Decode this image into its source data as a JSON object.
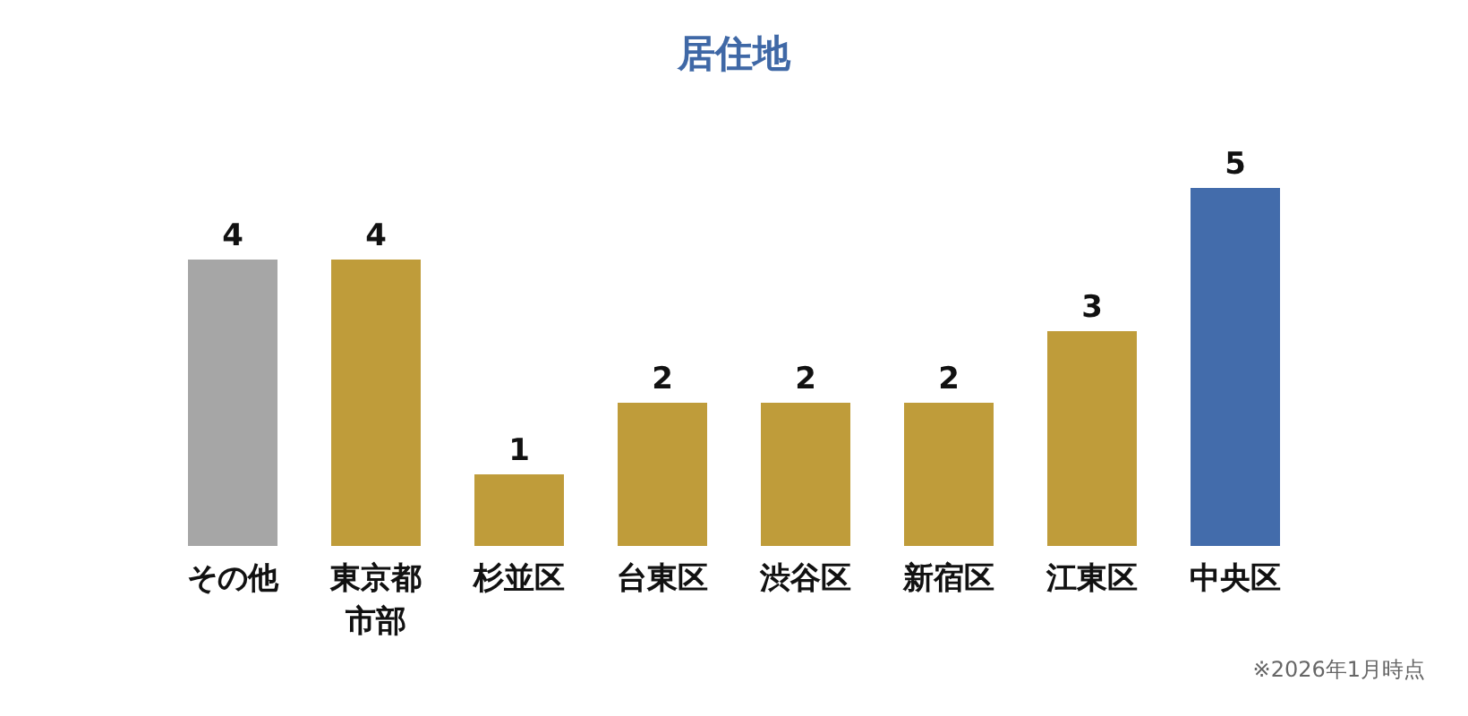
{
  "chart_data": {
    "type": "bar",
    "title": "居住地",
    "categories": [
      "その他",
      "東京都市部",
      "杉並区",
      "台東区",
      "渋谷区",
      "新宿区",
      "江東区",
      "中央区"
    ],
    "values": [
      4,
      4,
      1,
      2,
      2,
      2,
      3,
      5
    ],
    "colors": [
      "#a6a6a6",
      "#bf9c3a",
      "#bf9c3a",
      "#bf9c3a",
      "#bf9c3a",
      "#bf9c3a",
      "#bf9c3a",
      "#436cab"
    ],
    "relative": false,
    "data_labels": true,
    "grid": false,
    "legend": false,
    "annotations": [
      "※2026年1月時点"
    ]
  }
}
